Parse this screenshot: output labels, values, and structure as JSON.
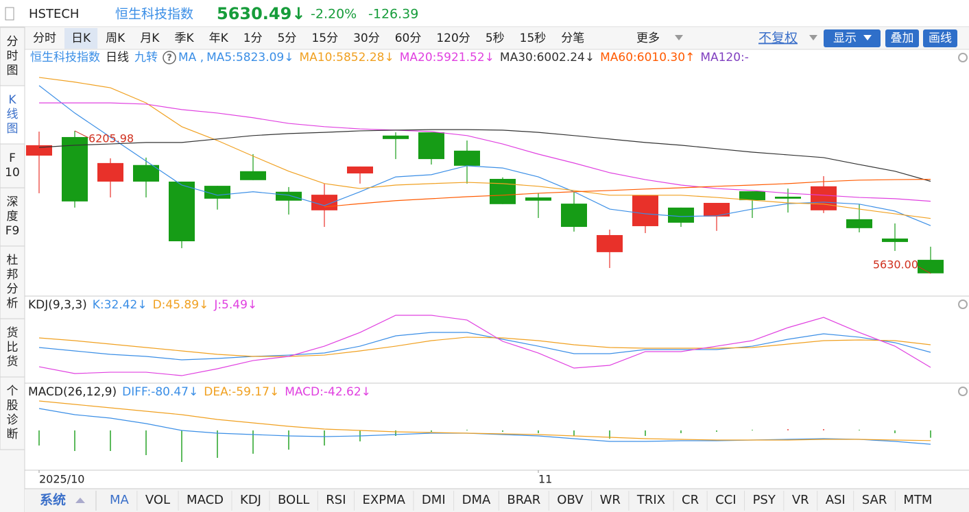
{
  "header": {
    "symbol": "HSTECH",
    "name": "恒生科技指数",
    "price": "5630.49↓",
    "change_pct": "-2.20%",
    "change": "-126.39"
  },
  "period_tabs": [
    "分时",
    "日K",
    "周K",
    "月K",
    "季K",
    "年K",
    "1分",
    "5分",
    "15分",
    "30分",
    "60分",
    "120分",
    "5秒",
    "15秒",
    "分笔"
  ],
  "period_selected": "日K",
  "more": "更多",
  "toolbar": {
    "adjust": "不复权",
    "display": "显示",
    "overlay": "叠加",
    "draw": "画线"
  },
  "side_tabs": [
    [
      "分",
      "时",
      "图"
    ],
    [
      "K",
      "线",
      "图"
    ],
    [
      "F",
      "10"
    ],
    [
      "深",
      "度",
      "F9"
    ],
    [
      "杜",
      "邦",
      "分",
      "析"
    ],
    [
      "货",
      "比",
      "货"
    ],
    [
      "个",
      "股",
      "诊",
      "断"
    ]
  ],
  "side_selected": 1,
  "legend": {
    "name": "恒生科技指数",
    "period": "日线",
    "nine": "九转",
    "help": "?",
    "ma": "MA ,"
  },
  "chart_data": [
    {
      "type": "candlestick",
      "categories": [
        "2025/10",
        null,
        null,
        null,
        null,
        null,
        null,
        null,
        null,
        null,
        null,
        null,
        null,
        null,
        "11",
        null,
        null,
        null,
        null,
        null,
        null,
        null,
        null,
        null,
        null,
        null
      ],
      "open": [
        6106,
        6181,
        6001,
        6068,
        6001,
        5984,
        6043,
        5960,
        5885,
        6034,
        6187,
        6200,
        6126,
        6012,
        5937,
        5912,
        5716,
        5821,
        5896,
        5860,
        5962,
        5940,
        5885,
        5849,
        5771,
        5685
      ],
      "high": [
        6203,
        6205.98,
        6095,
        6098,
        6001,
        5984,
        6112,
        5979,
        5993,
        6062,
        6200,
        6200,
        6167,
        6018,
        5954,
        5960,
        5807,
        5946,
        5896,
        5915,
        5962,
        5973,
        6023,
        5910,
        5832,
        5738
      ],
      "low": [
        5954,
        5896,
        5937,
        5937,
        5732,
        5888,
        6007,
        5868,
        5818,
        5993,
        6092,
        6070,
        5993,
        5910,
        5854,
        5799,
        5652,
        5793,
        5818,
        5802,
        5854,
        5876,
        5874,
        5796,
        5721,
        5630
      ],
      "close": [
        6148,
        5921,
        6076,
        6001,
        5760,
        5932,
        6007,
        5924,
        5948,
        6062,
        6173,
        6092,
        6065,
        5910,
        5924,
        5818,
        5785,
        5946,
        5835,
        5915,
        5926,
        5932,
        5982,
        5813,
        5757,
        5630.49
      ],
      "ylim": [
        5544,
        6491
      ],
      "up_color": "#e8312a",
      "down_color": "#169c16",
      "series": [
        {
          "name": "MA5",
          "label": "MA5:5823.09↓",
          "color": "#3a8ee6",
          "values": [
            6389,
            6278,
            6181,
            6084,
            5987,
            5946,
            5960,
            5946,
            5904,
            5960,
            6020,
            6029,
            6065,
            6056,
            6020,
            5960,
            5890,
            5871,
            5860,
            5863,
            5890,
            5912,
            5918,
            5910,
            5882,
            5823.09
          ]
        },
        {
          "name": "MA10",
          "label": "MA10:5852.28↓",
          "color": "#f0a020",
          "values": [
            6422,
            6403,
            6380,
            6319,
            6223,
            6167,
            6104,
            6043,
            5993,
            5973,
            5987,
            5993,
            5998,
            5993,
            5982,
            5965,
            5946,
            5946,
            5946,
            5937,
            5926,
            5915,
            5910,
            5890,
            5871,
            5852.28
          ]
        },
        {
          "name": "MA20",
          "label": "MA20:5921.52↓",
          "color": "#e040e0",
          "values": [
            6319,
            6319,
            6319,
            6314,
            6292,
            6278,
            6259,
            6236,
            6223,
            6214,
            6209,
            6203,
            6187,
            6153,
            6112,
            6076,
            6037,
            6009,
            5987,
            5973,
            5965,
            5954,
            5946,
            5937,
            5932,
            5921.52
          ]
        },
        {
          "name": "MA30",
          "label": "MA30:6002.24↓",
          "color": "#333333",
          "values": [
            6139,
            6148,
            6153,
            6159,
            6159,
            6173,
            6187,
            6195,
            6200,
            6206,
            6209,
            6211,
            6211,
            6209,
            6200,
            6187,
            6173,
            6159,
            6148,
            6134,
            6120,
            6109,
            6098,
            6070,
            6043,
            6002.24
          ]
        },
        {
          "name": "MA60",
          "label": "MA60:6010.30↑",
          "color": "#ff5a00",
          "values": [
            null,
            null,
            null,
            null,
            null,
            null,
            null,
            null,
            5899,
            5912,
            5924,
            5932,
            5940,
            5946,
            5954,
            5960,
            5965,
            5971,
            5976,
            5982,
            5987,
            5993,
            6001,
            6007,
            6009,
            6010.3
          ]
        },
        {
          "name": "MA120",
          "label": "MA120:-",
          "color": "#8040c0",
          "values": [
            null,
            null,
            null,
            null,
            null,
            null,
            null,
            null,
            null,
            null,
            null,
            null,
            null,
            null,
            null,
            null,
            null,
            null,
            null,
            null,
            null,
            null,
            null,
            null,
            null,
            null
          ]
        }
      ],
      "annotation_color": "#d0301e",
      "annotations": [
        {
          "label": "6205.98",
          "value": 6205.98
        },
        {
          "label": "5630.00",
          "value": 5630
        }
      ]
    },
    {
      "type": "line",
      "title": "KDJ(9,3,3)",
      "ylim": [
        -21.4,
        129.1
      ],
      "series": [
        {
          "name": "K",
          "label": "K:32.42↓",
          "color": "#3a8ee6",
          "values": [
            41.0,
            34.9,
            28.8,
            25.1,
            19.0,
            21.4,
            25.1,
            27.5,
            31.2,
            43.4,
            61.8,
            67.9,
            67.9,
            55.7,
            43.4,
            30.0,
            30.0,
            37.3,
            37.3,
            37.3,
            43.4,
            55.7,
            65.5,
            59.4,
            49.6,
            32.42
          ]
        },
        {
          "name": "D",
          "label": "D:45.89↓",
          "color": "#f0a020",
          "values": [
            58.1,
            53.2,
            47.1,
            41.0,
            34.9,
            28.8,
            25.1,
            25.1,
            27.5,
            34.9,
            43.4,
            53.2,
            59.4,
            58.1,
            53.2,
            45.9,
            41.0,
            39.8,
            39.8,
            39.8,
            41.0,
            47.1,
            53.2,
            54.5,
            53.2,
            45.89
          ]
        },
        {
          "name": "J",
          "label": "J:5.49↓",
          "color": "#e040e0",
          "values": [
            6.7,
            -5.5,
            -3.1,
            -3.1,
            -9.2,
            3.1,
            17.7,
            25.1,
            43.4,
            67.9,
            98.5,
            98.5,
            90.0,
            52.0,
            31.2,
            4.3,
            9.2,
            33.7,
            33.7,
            43.4,
            53.2,
            76.5,
            94.8,
            67.9,
            43.4,
            5.49
          ]
        }
      ]
    },
    {
      "type": "macd",
      "title": "MACD(26,12,9)",
      "ylim": [
        -232,
        264
      ],
      "up_color": "#e8312a",
      "down_color": "#169c16",
      "series": [
        {
          "name": "DIFF",
          "label": "DIFF:-80.47↓",
          "color": "#3a8ee6",
          "values": [
            128,
            92,
            72,
            40,
            0,
            -16,
            -24,
            -32,
            -36,
            -32,
            -24,
            -16,
            -16,
            -24,
            -32,
            -48,
            -64,
            -64,
            -60,
            -60,
            -56,
            -52,
            -48,
            -52,
            -64,
            -80.47
          ]
        },
        {
          "name": "DEA",
          "label": "DEA:-59.17↓",
          "color": "#f0a020",
          "values": [
            172,
            152,
            132,
            112,
            92,
            64,
            44,
            24,
            8,
            0,
            -8,
            -12,
            -16,
            -20,
            -24,
            -32,
            -40,
            -48,
            -52,
            -56,
            -56,
            -56,
            -52,
            -52,
            -56,
            -59.17
          ]
        },
        {
          "name": "MACD",
          "label": "MACD:-42.62↓",
          "color": "#e040e0",
          "bars": true,
          "values": [
            -88,
            -120,
            -120,
            -144,
            -184,
            -160,
            -136,
            -112,
            -88,
            -64,
            -32,
            -8,
            0,
            -8,
            -16,
            -32,
            -48,
            -32,
            -16,
            -8,
            0,
            8,
            8,
            0,
            -16,
            -42.62
          ]
        }
      ]
    }
  ],
  "indicator_tabs": {
    "system": "系统",
    "selected": "MA",
    "items": [
      "MA",
      "VOL",
      "MACD",
      "KDJ",
      "BOLL",
      "RSI",
      "EXPMA",
      "DMI",
      "DMA",
      "BRAR",
      "OBV",
      "WR",
      "TRIX",
      "CR",
      "CCI",
      "PSY",
      "VR",
      "ASI",
      "SAR",
      "MTM"
    ]
  }
}
